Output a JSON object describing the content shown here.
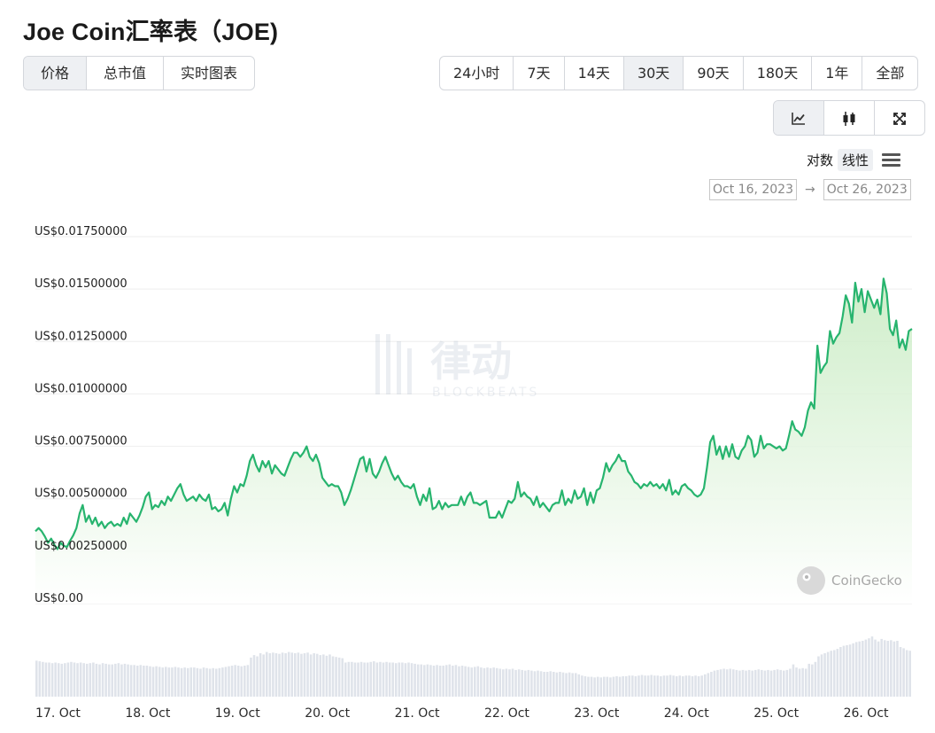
{
  "header": {
    "title": "Joe Coin汇率表（JOE)"
  },
  "view_tabs": [
    {
      "label": "价格",
      "active": true
    },
    {
      "label": "总市值",
      "active": false
    },
    {
      "label": "实时图表",
      "active": false
    }
  ],
  "range_tabs": [
    {
      "label": "24小时",
      "active": false
    },
    {
      "label": "7天",
      "active": false
    },
    {
      "label": "14天",
      "active": false
    },
    {
      "label": "30天",
      "active": true
    },
    {
      "label": "90天",
      "active": false
    },
    {
      "label": "180天",
      "active": false
    },
    {
      "label": "1年",
      "active": false
    },
    {
      "label": "全部",
      "active": false
    }
  ],
  "chart_type_buttons": [
    {
      "icon": "line-chart-icon",
      "active": true
    },
    {
      "icon": "candlestick-icon",
      "active": false
    },
    {
      "icon": "fullscreen-icon",
      "active": false
    }
  ],
  "scale_toggle": {
    "log_label": "对数",
    "linear_label": "线性",
    "active": "linear"
  },
  "date_range": {
    "from": "Oct 16, 2023",
    "to": "Oct 26, 2023",
    "separator": "→"
  },
  "watermark": {
    "brand": "律动",
    "sub": "BLOCKBEATS"
  },
  "attribution": {
    "text": "CoinGecko"
  },
  "colors": {
    "line": "#27b46e",
    "area_top": "#c7ebc1",
    "volume": "#dfe3ea",
    "grid": "#eeeeee"
  },
  "chart_data": {
    "type": "line",
    "y_axis": {
      "min": 0,
      "max": 0.0175,
      "ticks": [
        0.0175,
        0.015,
        0.0125,
        0.01,
        0.0075,
        0.005,
        0.0025,
        0
      ],
      "tick_labels": [
        "US$0.01750000",
        "US$0.01500000",
        "US$0.01250000",
        "US$0.01000000",
        "US$0.00750000",
        "US$0.00500000",
        "US$0.00250000",
        "US$0.00"
      ]
    },
    "x_axis": {
      "start": "16 Oct 21:20",
      "end": "26 Oct 21:00",
      "tick_labels": [
        "17. Oct",
        "18. Oct",
        "19. Oct",
        "20. Oct",
        "21. Oct",
        "22. Oct",
        "23. Oct",
        "24. Oct",
        "25. Oct",
        "26. Oct"
      ]
    },
    "grid": true,
    "price_series": [
      0.00345,
      0.0036,
      0.00345,
      0.0032,
      0.0029,
      0.0031,
      0.0028,
      0.0026,
      0.0029,
      0.00275,
      0.0027,
      0.003,
      0.00325,
      0.0036,
      0.0043,
      0.0047,
      0.0039,
      0.0042,
      0.0038,
      0.0041,
      0.0037,
      0.0039,
      0.0036,
      0.0038,
      0.0039,
      0.0037,
      0.0038,
      0.0037,
      0.0041,
      0.0038,
      0.0043,
      0.0041,
      0.0039,
      0.0042,
      0.0046,
      0.0051,
      0.0053,
      0.0045,
      0.0047,
      0.0046,
      0.0049,
      0.0047,
      0.0051,
      0.0049,
      0.0052,
      0.0055,
      0.0057,
      0.0052,
      0.0049,
      0.005,
      0.0051,
      0.0049,
      0.0052,
      0.005,
      0.0049,
      0.0052,
      0.0045,
      0.0046,
      0.0044,
      0.0045,
      0.0048,
      0.0042,
      0.005,
      0.0056,
      0.0053,
      0.0057,
      0.0056,
      0.0061,
      0.0068,
      0.0071,
      0.0066,
      0.0063,
      0.0068,
      0.0065,
      0.0068,
      0.0062,
      0.0066,
      0.0064,
      0.0062,
      0.0061,
      0.0065,
      0.0069,
      0.0072,
      0.0072,
      0.007,
      0.0072,
      0.0075,
      0.007,
      0.0068,
      0.0071,
      0.0067,
      0.006,
      0.0058,
      0.0056,
      0.0057,
      0.0056,
      0.0056,
      0.0053,
      0.0047,
      0.005,
      0.0054,
      0.0059,
      0.0064,
      0.0069,
      0.007,
      0.0063,
      0.0069,
      0.0062,
      0.006,
      0.0063,
      0.0067,
      0.007,
      0.0066,
      0.0062,
      0.0059,
      0.0061,
      0.0058,
      0.0056,
      0.0056,
      0.0055,
      0.0057,
      0.0051,
      0.0047,
      0.0052,
      0.0049,
      0.0055,
      0.0045,
      0.0046,
      0.0049,
      0.0045,
      0.0048,
      0.0046,
      0.0047,
      0.0047,
      0.0047,
      0.0051,
      0.0047,
      0.0051,
      0.0053,
      0.0048,
      0.0048,
      0.0047,
      0.0048,
      0.0049,
      0.0041,
      0.0041,
      0.0041,
      0.0044,
      0.0041,
      0.0045,
      0.0049,
      0.0048,
      0.005,
      0.0058,
      0.0051,
      0.0053,
      0.0051,
      0.005,
      0.0047,
      0.0051,
      0.0046,
      0.0048,
      0.0046,
      0.0044,
      0.0047,
      0.0048,
      0.0048,
      0.0054,
      0.0047,
      0.005,
      0.0048,
      0.0054,
      0.005,
      0.0051,
      0.0055,
      0.0047,
      0.0053,
      0.0048,
      0.0054,
      0.0055,
      0.006,
      0.0067,
      0.0063,
      0.0066,
      0.0068,
      0.0071,
      0.0068,
      0.0068,
      0.0063,
      0.0061,
      0.0058,
      0.0057,
      0.0055,
      0.0057,
      0.0056,
      0.0058,
      0.0056,
      0.0057,
      0.0055,
      0.0057,
      0.0054,
      0.0059,
      0.0052,
      0.0054,
      0.0052,
      0.0056,
      0.0057,
      0.0055,
      0.0054,
      0.0052,
      0.0051,
      0.0052,
      0.0055,
      0.0065,
      0.0077,
      0.008,
      0.0071,
      0.0075,
      0.0069,
      0.0075,
      0.007,
      0.0076,
      0.007,
      0.0069,
      0.0073,
      0.0075,
      0.008,
      0.0078,
      0.007,
      0.0072,
      0.008,
      0.0074,
      0.0076,
      0.0076,
      0.0075,
      0.0074,
      0.0075,
      0.0073,
      0.0074,
      0.008,
      0.0087,
      0.0083,
      0.0082,
      0.008,
      0.0084,
      0.0092,
      0.0096,
      0.0093,
      0.0123,
      0.011,
      0.0113,
      0.0115,
      0.013,
      0.0124,
      0.0127,
      0.0129,
      0.0137,
      0.0147,
      0.0143,
      0.0134,
      0.0153,
      0.0144,
      0.015,
      0.0139,
      0.0149,
      0.0145,
      0.0141,
      0.0145,
      0.0138,
      0.0155,
      0.0148,
      0.0131,
      0.0128,
      0.0135,
      0.0122,
      0.0126,
      0.0121,
      0.013,
      0.0131
    ],
    "volume_relative": [
      0.58,
      0.57,
      0.56,
      0.55,
      0.55,
      0.54,
      0.55,
      0.54,
      0.53,
      0.54,
      0.55,
      0.56,
      0.55,
      0.54,
      0.55,
      0.54,
      0.53,
      0.54,
      0.55,
      0.53,
      0.52,
      0.54,
      0.53,
      0.52,
      0.52,
      0.53,
      0.54,
      0.52,
      0.53,
      0.52,
      0.51,
      0.51,
      0.5,
      0.51,
      0.5,
      0.5,
      0.49,
      0.48,
      0.49,
      0.48,
      0.47,
      0.48,
      0.47,
      0.47,
      0.48,
      0.47,
      0.46,
      0.47,
      0.46,
      0.47,
      0.47,
      0.46,
      0.45,
      0.47,
      0.46,
      0.45,
      0.46,
      0.45,
      0.46,
      0.47,
      0.48,
      0.49,
      0.5,
      0.51,
      0.5,
      0.49,
      0.5,
      0.51,
      0.63,
      0.67,
      0.65,
      0.7,
      0.68,
      0.72,
      0.7,
      0.71,
      0.7,
      0.69,
      0.71,
      0.7,
      0.72,
      0.71,
      0.7,
      0.71,
      0.69,
      0.7,
      0.71,
      0.68,
      0.7,
      0.69,
      0.67,
      0.68,
      0.66,
      0.68,
      0.65,
      0.64,
      0.63,
      0.62,
      0.55,
      0.56,
      0.56,
      0.55,
      0.55,
      0.56,
      0.55,
      0.55,
      0.56,
      0.57,
      0.55,
      0.56,
      0.55,
      0.56,
      0.55,
      0.55,
      0.54,
      0.55,
      0.55,
      0.54,
      0.55,
      0.54,
      0.53,
      0.52,
      0.52,
      0.51,
      0.52,
      0.51,
      0.5,
      0.51,
      0.5,
      0.5,
      0.51,
      0.52,
      0.5,
      0.51,
      0.49,
      0.5,
      0.49,
      0.48,
      0.47,
      0.48,
      0.49,
      0.47,
      0.46,
      0.47,
      0.46,
      0.47,
      0.46,
      0.45,
      0.44,
      0.45,
      0.44,
      0.45,
      0.43,
      0.44,
      0.43,
      0.42,
      0.43,
      0.42,
      0.41,
      0.42,
      0.41,
      0.4,
      0.4,
      0.41,
      0.4,
      0.39,
      0.4,
      0.39,
      0.38,
      0.39,
      0.38,
      0.38,
      0.36,
      0.34,
      0.33,
      0.32,
      0.32,
      0.31,
      0.32,
      0.31,
      0.32,
      0.32,
      0.31,
      0.32,
      0.33,
      0.32,
      0.33,
      0.33,
      0.34,
      0.34,
      0.33,
      0.34,
      0.35,
      0.34,
      0.34,
      0.35,
      0.34,
      0.34,
      0.33,
      0.34,
      0.34,
      0.35,
      0.34,
      0.33,
      0.34,
      0.33,
      0.34,
      0.34,
      0.33,
      0.34,
      0.33,
      0.34,
      0.36,
      0.38,
      0.4,
      0.42,
      0.43,
      0.44,
      0.45,
      0.44,
      0.45,
      0.44,
      0.43,
      0.42,
      0.43,
      0.42,
      0.43,
      0.42,
      0.43,
      0.44,
      0.43,
      0.42,
      0.43,
      0.42,
      0.43,
      0.44,
      0.43,
      0.42,
      0.43,
      0.45,
      0.52,
      0.47,
      0.45,
      0.46,
      0.45,
      0.53,
      0.52,
      0.56,
      0.65,
      0.68,
      0.7,
      0.72,
      0.74,
      0.75,
      0.77,
      0.8,
      0.82,
      0.83,
      0.84,
      0.86,
      0.88,
      0.89,
      0.9,
      0.92,
      0.94,
      0.97,
      0.92,
      0.89,
      0.93,
      0.91,
      0.9,
      0.91,
      0.89,
      0.9,
      0.8,
      0.78,
      0.75,
      0.74
    ]
  }
}
